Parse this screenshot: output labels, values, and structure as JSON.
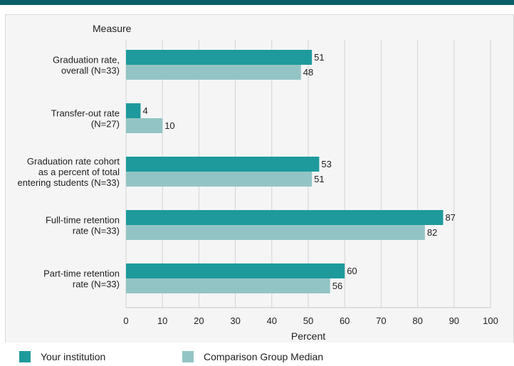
{
  "chart_data": {
    "type": "bar",
    "orientation": "horizontal",
    "category_axis_label": "Measure",
    "xlabel": "Percent",
    "xlim": [
      0,
      100
    ],
    "xticks": [
      0,
      10,
      20,
      30,
      40,
      50,
      60,
      70,
      80,
      90,
      100
    ],
    "grid": true,
    "categories": [
      [
        "Graduation rate,",
        "overall (N=33)"
      ],
      [
        "Transfer-out rate",
        "(N=27)"
      ],
      [
        "Graduation rate cohort",
        "as a percent of total",
        "entering students (N=33)"
      ],
      [
        "Full-time retention",
        "rate (N=33)"
      ],
      [
        "Part-time retention",
        "rate (N=33)"
      ]
    ],
    "series": [
      {
        "name": "Your institution",
        "color": "#1e9a9c",
        "values": [
          51,
          4,
          53,
          87,
          60
        ]
      },
      {
        "name": "Comparison Group Median",
        "color": "#93c4c5",
        "values": [
          48,
          10,
          51,
          82,
          56
        ]
      }
    ],
    "legend_position": "bottom"
  }
}
